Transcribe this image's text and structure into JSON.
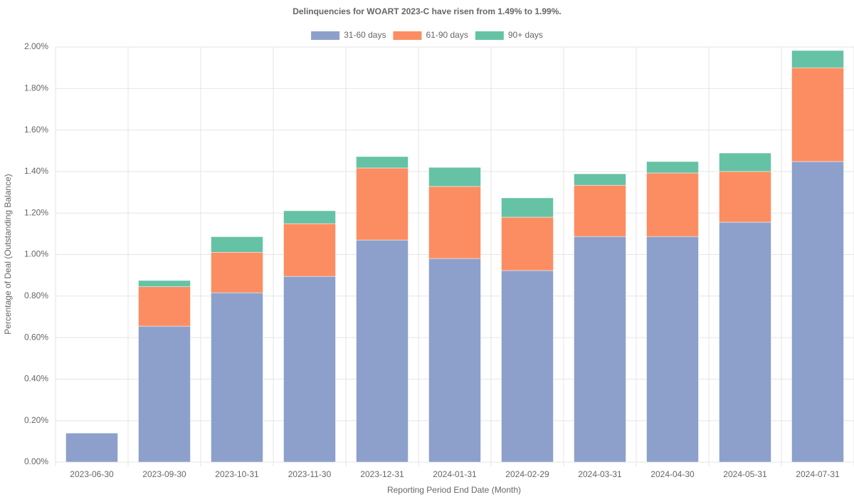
{
  "chart_data": {
    "type": "stacked_bar",
    "title": "Delinquencies for WOART 2023-C have risen from 1.49% to 1.99%.",
    "x_label": "Reporting Period End Date (Month)",
    "y_label": "Percentage of Deal (Outstanding Balance)",
    "categories": [
      "2023-06-30",
      "2023-09-30",
      "2023-10-31",
      "2023-11-30",
      "2023-12-31",
      "2024-01-31",
      "2024-02-29",
      "2024-03-31",
      "2024-04-30",
      "2024-05-31",
      "2024-07-31"
    ],
    "series": [
      {
        "name": "31-60 days",
        "color": "#8da0cb",
        "values": [
          0.14,
          0.655,
          0.816,
          0.895,
          1.07,
          0.981,
          0.923,
          1.087,
          1.087,
          1.156,
          1.448
        ]
      },
      {
        "name": "61-90 days",
        "color": "#fc8d62",
        "values": [
          0,
          0.19,
          0.195,
          0.254,
          0.347,
          0.347,
          0.257,
          0.247,
          0.306,
          0.244,
          0.452
        ]
      },
      {
        "name": "90+ days",
        "color": "#66c2a5",
        "values": [
          0,
          0.03,
          0.075,
          0.062,
          0.055,
          0.092,
          0.093,
          0.055,
          0.055,
          0.089,
          0.083
        ]
      }
    ],
    "ylim": [
      0,
      2
    ],
    "yticks": [
      {
        "value": 0,
        "label": "0.00%"
      },
      {
        "value": 0.2,
        "label": "0.20%"
      },
      {
        "value": 0.4,
        "label": "0.40%"
      },
      {
        "value": 0.6,
        "label": "0.60%"
      },
      {
        "value": 0.8,
        "label": "0.80%"
      },
      {
        "value": 1,
        "label": "1.00%"
      },
      {
        "value": 1.2,
        "label": "1.20%"
      },
      {
        "value": 1.4,
        "label": "1.40%"
      },
      {
        "value": 1.6,
        "label": "1.60%"
      },
      {
        "value": 1.8,
        "label": "1.80%"
      },
      {
        "value": 2,
        "label": "2.00%"
      }
    ],
    "grid": true,
    "legend": "top"
  }
}
